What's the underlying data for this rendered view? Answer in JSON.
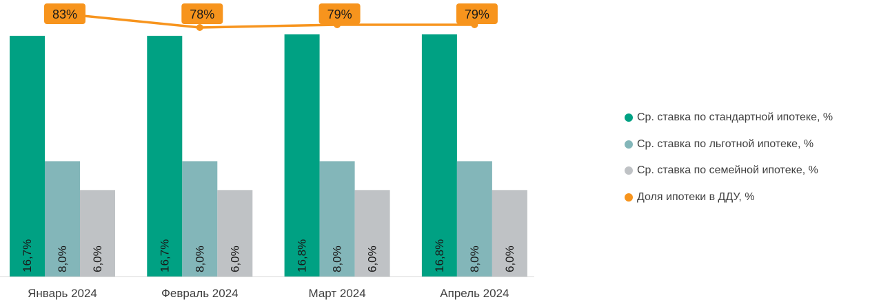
{
  "chart_data": {
    "type": "bar",
    "categories": [
      "Январь 2024",
      "Февраль 2024",
      "Март 2024",
      "Апрель 2024"
    ],
    "series": [
      {
        "name": "Ср. ставка по стандартной ипотеке, %",
        "type": "bar",
        "color": "#00A183",
        "values": [
          16.7,
          16.7,
          16.8,
          16.8
        ],
        "labels": [
          "16,7%",
          "16,7%",
          "16,8%",
          "16,8%"
        ]
      },
      {
        "name": "Ср. ставка по льготной ипотеке, %",
        "type": "bar",
        "color": "#83B6B9",
        "values": [
          8.0,
          8.0,
          8.0,
          8.0
        ],
        "labels": [
          "8,0%",
          "8,0%",
          "8,0%",
          "8,0%"
        ]
      },
      {
        "name": "Ср. ставка по семейной ипотеке, %",
        "type": "bar",
        "color": "#BFC2C5",
        "values": [
          6.0,
          6.0,
          6.0,
          6.0
        ],
        "labels": [
          "6,0%",
          "6,0%",
          "6,0%",
          "6,0%"
        ]
      },
      {
        "name": "Доля ипотеки в ДДУ, %",
        "type": "line",
        "color": "#F7941D",
        "values": [
          83,
          78,
          79,
          79
        ],
        "labels": [
          "83%",
          "78%",
          "79%",
          "79%"
        ]
      }
    ],
    "title": "",
    "xlabel": "",
    "ylabel": "",
    "ylim": [
      0,
      16.8
    ],
    "ylim_secondary": [
      0,
      80
    ],
    "grid": false,
    "legend_position": "right"
  }
}
